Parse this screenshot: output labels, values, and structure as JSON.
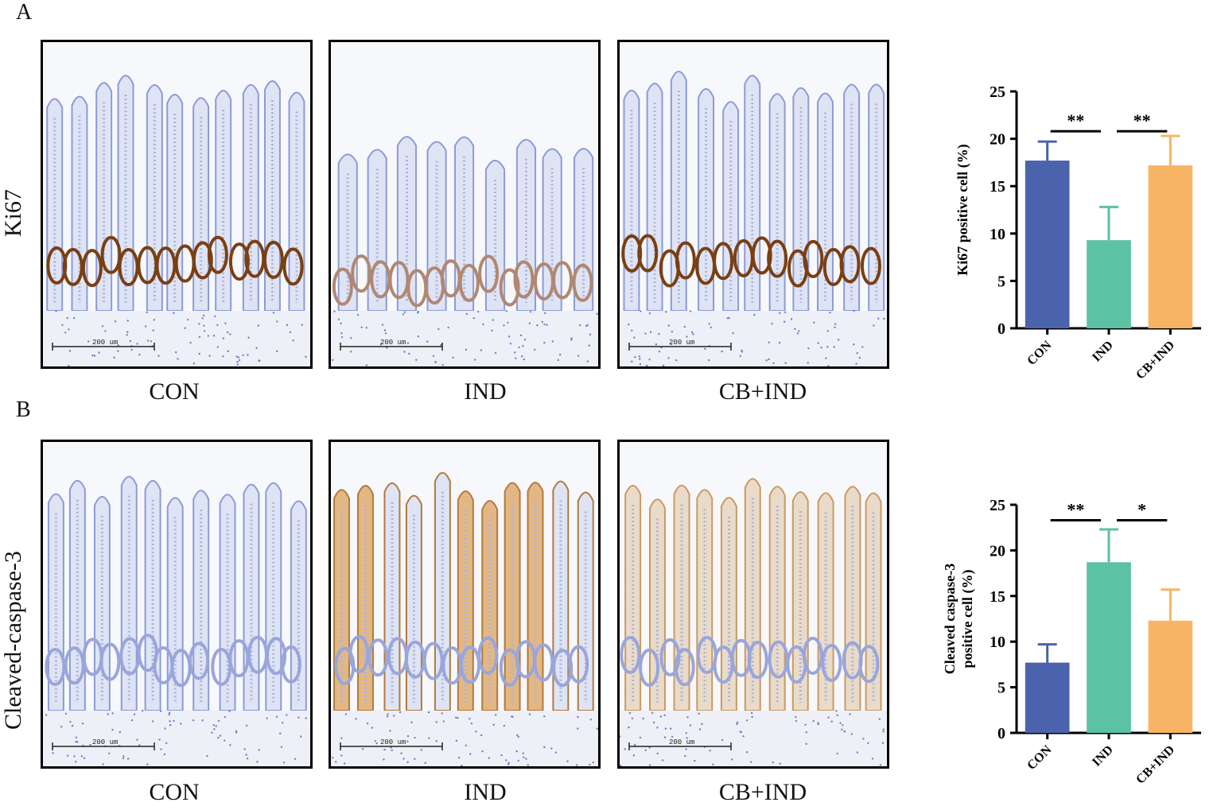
{
  "panels": [
    {
      "letter": "A",
      "stain": "Ki67",
      "images": [
        {
          "condition": "CON",
          "scale_text": "200 um",
          "tone": "brown-base"
        },
        {
          "condition": "IND",
          "scale_text": "200 um",
          "tone": "damaged"
        },
        {
          "condition": "CB+IND",
          "scale_text": "200 um",
          "tone": "brown-base"
        }
      ]
    },
    {
      "letter": "B",
      "stain": "Cleaved-caspase-3",
      "images": [
        {
          "condition": "CON",
          "scale_text": "200 um",
          "tone": "blue"
        },
        {
          "condition": "IND",
          "scale_text": "200 um",
          "tone": "orange"
        },
        {
          "condition": "CB+IND",
          "scale_text": "200 um",
          "tone": "light-orange"
        }
      ]
    }
  ],
  "colors": {
    "CON": "#4a63ac",
    "IND": "#5bc2a3",
    "CB+IND": "#f8b465",
    "tissue_blue": "#8c9bd6",
    "stain_brown": "#7a3f12",
    "stain_orange": "#d9954a"
  },
  "chart_data": [
    {
      "type": "bar",
      "categories": [
        "CON",
        "IND",
        "CB+IND"
      ],
      "values": [
        17.7,
        9.3,
        17.2
      ],
      "errors": [
        2.0,
        3.5,
        3.1
      ],
      "ylabel": "Ki67 positive cell (%)",
      "ylabel_lines": [
        "Ki67 positive cell (%)"
      ],
      "yticks": [
        0,
        5,
        10,
        15,
        20,
        25
      ],
      "ylim": [
        0,
        25
      ],
      "significance": [
        {
          "from": 0,
          "to": 1,
          "label": "**",
          "y": 20.8
        },
        {
          "from": 1,
          "to": 2,
          "label": "**",
          "y": 20.8
        }
      ]
    },
    {
      "type": "bar",
      "categories": [
        "CON",
        "IND",
        "CB+IND"
      ],
      "values": [
        7.7,
        18.7,
        12.3
      ],
      "errors": [
        2.0,
        3.6,
        3.4
      ],
      "ylabel": "Cleaved caspase-3 positive cell (%)",
      "ylabel_lines": [
        "Cleaved caspase-3",
        "positive cell (%)"
      ],
      "yticks": [
        0,
        5,
        10,
        15,
        20,
        25
      ],
      "ylim": [
        0,
        25
      ],
      "significance": [
        {
          "from": 0,
          "to": 1,
          "label": "**",
          "y": 23.3
        },
        {
          "from": 1,
          "to": 2,
          "label": "*",
          "y": 23.3
        }
      ]
    }
  ]
}
